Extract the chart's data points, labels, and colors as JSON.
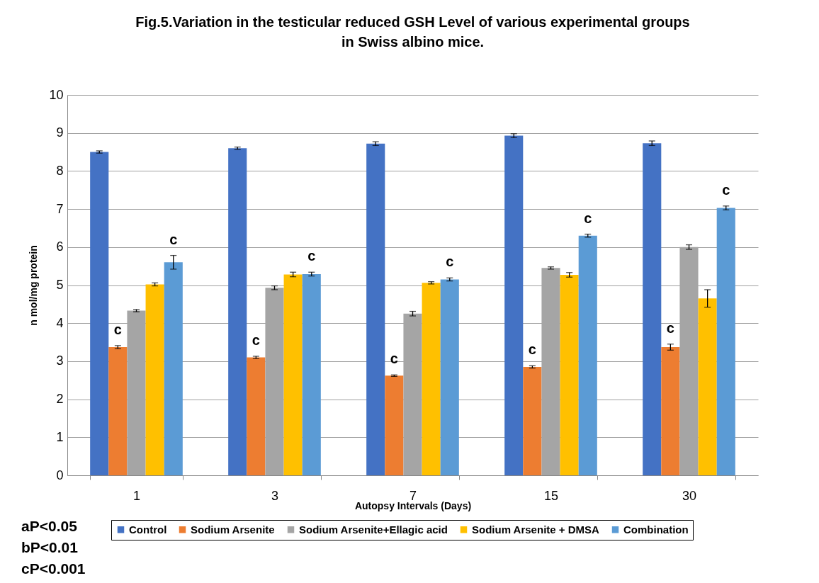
{
  "chart_data": {
    "type": "bar",
    "title": "Fig.5.Variation in the testicular reduced GSH Level of various experimental groups in Swiss albino mice.",
    "xlabel": "Autopsy Intervals (Days)",
    "ylabel": "n mol/mg protein",
    "categories": [
      "1",
      "3",
      "7",
      "15",
      "30"
    ],
    "series": [
      {
        "name": "Control",
        "color": "#4472c4",
        "values": [
          8.5,
          8.6,
          8.72,
          8.93,
          8.73
        ],
        "errors": [
          0.03,
          0.03,
          0.05,
          0.05,
          0.06
        ]
      },
      {
        "name": "Sodium Arsenite",
        "color": "#ed7d31",
        "values": [
          3.37,
          3.1,
          2.62,
          2.85,
          3.37
        ],
        "errors": [
          0.04,
          0.03,
          0.02,
          0.03,
          0.08
        ],
        "value_labels": [
          "c",
          "c",
          "c",
          "c",
          "c"
        ]
      },
      {
        "name": "Sodium Arsenite+Ellagic acid",
        "color": "#a5a5a5",
        "values": [
          4.33,
          4.93,
          4.25,
          5.45,
          6.0
        ],
        "errors": [
          0.03,
          0.05,
          0.06,
          0.03,
          0.06
        ]
      },
      {
        "name": "Sodium Arsenite + DMSA",
        "color": "#ffc000",
        "values": [
          5.02,
          5.28,
          5.06,
          5.27,
          4.65
        ],
        "errors": [
          0.04,
          0.06,
          0.03,
          0.06,
          0.23
        ]
      },
      {
        "name": "Combination",
        "color": "#5b9bd5",
        "values": [
          5.6,
          5.29,
          5.15,
          6.3,
          7.03
        ],
        "errors": [
          0.18,
          0.05,
          0.04,
          0.04,
          0.05
        ],
        "value_labels": [
          "c",
          "c",
          "c",
          "c",
          "c"
        ]
      }
    ],
    "ylim": [
      0,
      10
    ],
    "yticks": [
      0,
      1,
      2,
      3,
      4,
      5,
      6,
      7,
      8,
      9,
      10
    ],
    "grid": "y",
    "legend": "bottom",
    "annotations": [
      "aP<0.05",
      "bP<0.01",
      "cP<0.001"
    ]
  }
}
